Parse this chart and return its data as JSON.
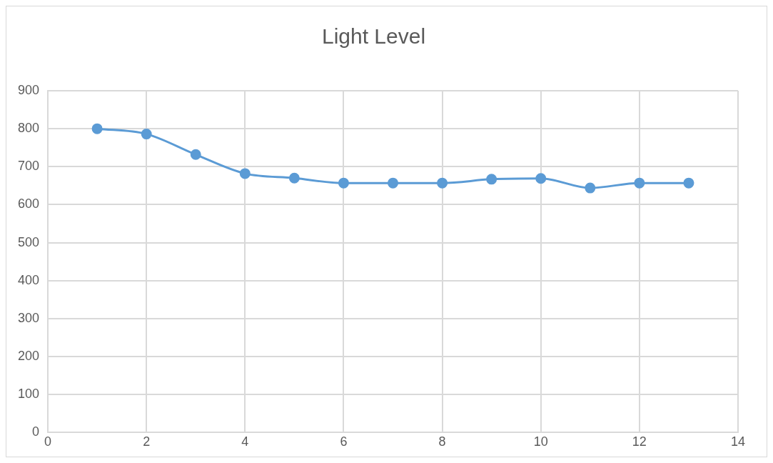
{
  "chart_data": {
    "type": "line",
    "title": "Light Level",
    "x": [
      1,
      2,
      3,
      4,
      5,
      6,
      7,
      8,
      9,
      10,
      11,
      12,
      13
    ],
    "series": [
      {
        "color": "#5b9bd5",
        "values": [
          800,
          786,
          732,
          682,
          670,
          657,
          657,
          657,
          667,
          669,
          644,
          657,
          657
        ]
      }
    ],
    "xlim": [
      0,
      14
    ],
    "xticks": [
      0,
      2,
      4,
      6,
      8,
      10,
      12,
      14
    ],
    "ylim": [
      0,
      900
    ],
    "yticks": [
      0,
      100,
      200,
      300,
      400,
      500,
      600,
      700,
      800,
      900
    ],
    "grid": true,
    "marker": "circle",
    "line_style": "solid",
    "legend": false
  }
}
